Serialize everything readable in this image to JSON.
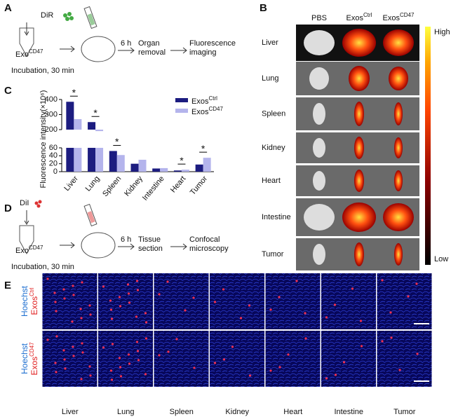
{
  "panel_labels": [
    "A",
    "B",
    "C",
    "D",
    "E"
  ],
  "panel_a": {
    "dye": "DiR",
    "exo": "Exo",
    "exo_sup": "CD47",
    "incubation": "Incubation, 30 min",
    "time": "6 h",
    "step1": [
      "Organ",
      "removal"
    ],
    "step2": [
      "Fluorescence",
      "imaging"
    ]
  },
  "panel_b": {
    "columns": [
      {
        "text": "PBS"
      },
      {
        "text": "Exos",
        "sup": "Ctrl"
      },
      {
        "text": "Exos",
        "sup": "CD47"
      }
    ],
    "rows": [
      "Liver",
      "Lung",
      "Spleen",
      "Kidney",
      "Heart",
      "Intestine",
      "Tumor"
    ],
    "scale": {
      "high": "High",
      "low": "Low"
    }
  },
  "chart_data": {
    "type": "bar",
    "y_label": "Fluorescence intensity(×10⁶)",
    "categories": [
      "Liver",
      "Lung",
      "Spleen",
      "Kidney",
      "Intestine",
      "Heart",
      "Tumor"
    ],
    "series": [
      {
        "name": "Exos",
        "name_sup": "Ctrl",
        "color": "#1c1c80",
        "values": [
          385,
          250,
          52,
          20,
          8,
          3,
          18
        ]
      },
      {
        "name": "Exos",
        "name_sup": "CD47",
        "color": "#b4b4ec",
        "values": [
          270,
          190,
          42,
          30,
          9,
          5,
          35
        ]
      }
    ],
    "ylim_lower": [
      0,
      60
    ],
    "yticks_lower": [
      0,
      20,
      40,
      60
    ],
    "ylim_upper": [
      200,
      400
    ],
    "yticks_upper": [
      200,
      300,
      400
    ],
    "significance": [
      "*",
      "*",
      "*",
      null,
      null,
      "*",
      "*"
    ]
  },
  "panel_d": {
    "dye": "DiI",
    "exo": "Exo",
    "exo_sup": "CD47",
    "incubation": "Incubation, 30 min",
    "time": "6 h",
    "step1": [
      "Tissue",
      "section"
    ],
    "step2": [
      "Confocal",
      "microscopy"
    ]
  },
  "panel_e": {
    "rows": [
      {
        "stain": "Hoechst",
        "label": "Exos",
        "sup": "Ctrl"
      },
      {
        "stain": "Hoechst",
        "label": "Exos",
        "sup": "CD47"
      }
    ],
    "columns": [
      "Liver",
      "Lung",
      "Spleen",
      "Kidney",
      "Heart",
      "Intestine",
      "Tumor"
    ]
  }
}
